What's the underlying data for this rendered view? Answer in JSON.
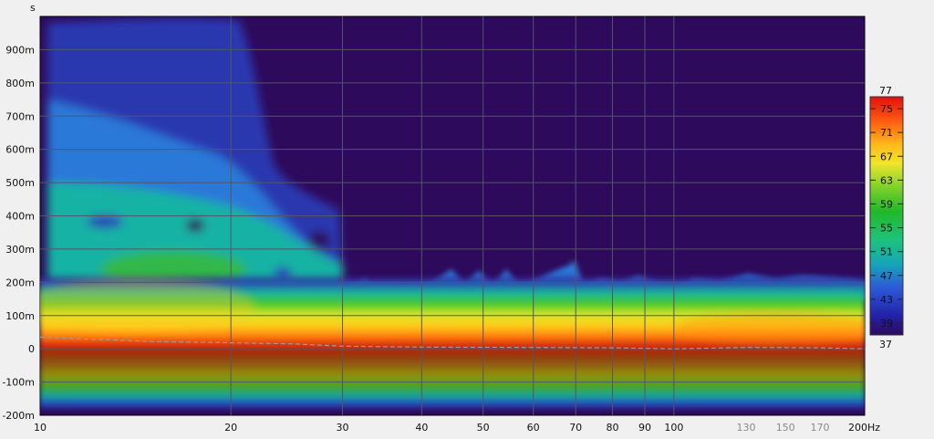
{
  "chart_data": {
    "type": "heatmap",
    "title": "",
    "xlabel": "",
    "ylabel": "",
    "y_unit_label": "s",
    "x_unit_suffix": "Hz",
    "x_scale": "log",
    "xlim": [
      10,
      200
    ],
    "ylim": [
      -0.2,
      1.0
    ],
    "grid": true,
    "x_ticks": [
      {
        "value": 10,
        "label": "10",
        "major": true
      },
      {
        "value": 20,
        "label": "20",
        "major": true
      },
      {
        "value": 30,
        "label": "30",
        "major": true
      },
      {
        "value": 40,
        "label": "40",
        "major": true
      },
      {
        "value": 50,
        "label": "50",
        "major": true
      },
      {
        "value": 60,
        "label": "60",
        "major": true
      },
      {
        "value": 70,
        "label": "70",
        "major": true
      },
      {
        "value": 80,
        "label": "80",
        "major": true
      },
      {
        "value": 90,
        "label": "90",
        "major": true
      },
      {
        "value": 100,
        "label": "100",
        "major": true
      },
      {
        "value": 130,
        "label": "130",
        "major": false
      },
      {
        "value": 150,
        "label": "150",
        "major": false
      },
      {
        "value": 170,
        "label": "170",
        "major": false
      },
      {
        "value": 200,
        "label": "200Hz",
        "major": true
      }
    ],
    "y_ticks": [
      {
        "value": 0.9,
        "label": "900m"
      },
      {
        "value": 0.8,
        "label": "800m"
      },
      {
        "value": 0.7,
        "label": "700m"
      },
      {
        "value": 0.6,
        "label": "600m"
      },
      {
        "value": 0.5,
        "label": "500m"
      },
      {
        "value": 0.4,
        "label": "400m"
      },
      {
        "value": 0.3,
        "label": "300m"
      },
      {
        "value": 0.2,
        "label": "200m"
      },
      {
        "value": 0.1,
        "label": "100m"
      },
      {
        "value": 0.0,
        "label": "0"
      },
      {
        "value": -0.1,
        "label": "-100m"
      },
      {
        "value": -0.2,
        "label": "-200m"
      }
    ],
    "colorbar": {
      "min": 37,
      "max": 77,
      "min_label": "37",
      "max_label": "77",
      "tick_values": [
        75,
        71,
        67,
        63,
        59,
        55,
        51,
        47,
        43,
        39
      ]
    },
    "colors": {
      "background": "#2e0a5c",
      "grid": "#555566",
      "group_delay_line": "#9a9aa8"
    },
    "group_delay_curve": {
      "x": [
        10,
        15,
        20,
        25,
        30,
        40,
        60,
        80,
        100,
        130,
        170,
        200
      ],
      "y": [
        0.035,
        0.022,
        0.018,
        0.015,
        0.008,
        0.005,
        0.004,
        0.003,
        0.0,
        0.004,
        0.003,
        0.0
      ]
    }
  }
}
